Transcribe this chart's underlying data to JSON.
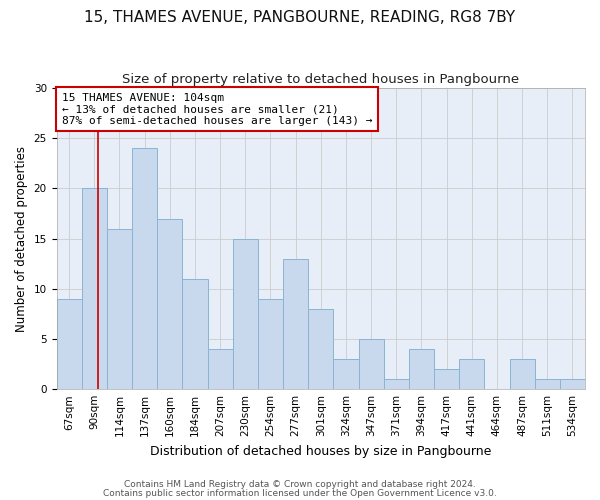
{
  "title1": "15, THAMES AVENUE, PANGBOURNE, READING, RG8 7BY",
  "title2": "Size of property relative to detached houses in Pangbourne",
  "xlabel": "Distribution of detached houses by size in Pangbourne",
  "ylabel": "Number of detached properties",
  "categories": [
    "67sqm",
    "90sqm",
    "114sqm",
    "137sqm",
    "160sqm",
    "184sqm",
    "207sqm",
    "230sqm",
    "254sqm",
    "277sqm",
    "301sqm",
    "324sqm",
    "347sqm",
    "371sqm",
    "394sqm",
    "417sqm",
    "441sqm",
    "464sqm",
    "487sqm",
    "511sqm",
    "534sqm"
  ],
  "values": [
    9,
    20,
    16,
    24,
    17,
    11,
    4,
    15,
    9,
    13,
    8,
    3,
    5,
    1,
    4,
    2,
    3,
    0,
    3,
    1,
    1
  ],
  "bar_color": "#c9d9ed",
  "bar_edgecolor": "#8ab4d4",
  "bar_linewidth": 0.7,
  "annotation_text_line1": "15 THAMES AVENUE: 104sqm",
  "annotation_text_line2": "← 13% of detached houses are smaller (21)",
  "annotation_text_line3": "87% of semi-detached houses are larger (143) →",
  "annotation_box_facecolor": "#ffffff",
  "annotation_box_edgecolor": "#cc0000",
  "vline_x": 1.65,
  "vline_color": "#cc0000",
  "ylim": [
    0,
    30
  ],
  "yticks": [
    0,
    5,
    10,
    15,
    20,
    25,
    30
  ],
  "grid_color": "#cccccc",
  "plot_bg_color": "#e8eef7",
  "fig_bg_color": "#ffffff",
  "footer1": "Contains HM Land Registry data © Crown copyright and database right 2024.",
  "footer2": "Contains public sector information licensed under the Open Government Licence v3.0.",
  "title1_fontsize": 11,
  "title2_fontsize": 9.5,
  "xlabel_fontsize": 9,
  "ylabel_fontsize": 8.5,
  "tick_fontsize": 7.5,
  "footer_fontsize": 6.5,
  "annotation_fontsize": 8
}
